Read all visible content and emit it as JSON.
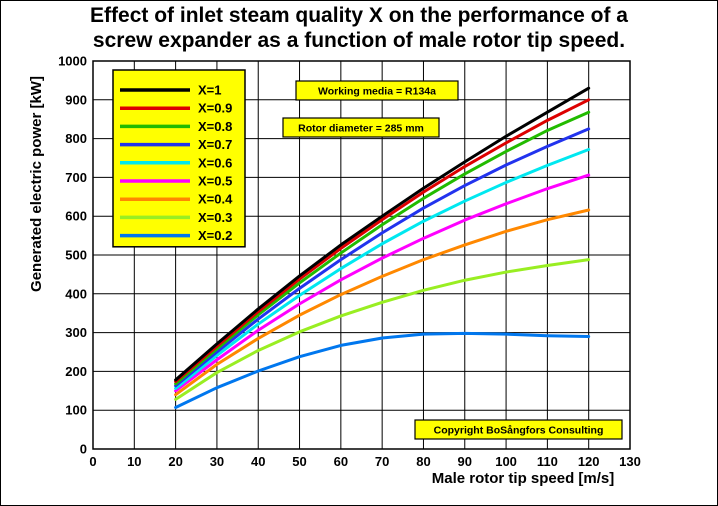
{
  "chart_data": {
    "type": "line",
    "title": "Effect of inlet steam quality X on the performance of a\nscrew expander as a function of male rotor tip speed.",
    "xlabel": "Male rotor tip speed [m/s]",
    "ylabel": "Generated electric power [kW]",
    "xlim": [
      0,
      130
    ],
    "ylim": [
      0,
      1000
    ],
    "xticks": [
      0,
      10,
      20,
      30,
      40,
      50,
      60,
      70,
      80,
      90,
      100,
      110,
      120,
      130
    ],
    "yticks": [
      0,
      100,
      200,
      300,
      400,
      500,
      600,
      700,
      800,
      900,
      1000
    ],
    "grid": true,
    "legend_position": "top-left",
    "x": [
      20,
      30,
      40,
      50,
      60,
      70,
      80,
      90,
      100,
      110,
      120
    ],
    "series": [
      {
        "name": "X=1",
        "color": "#000000",
        "values": [
          178,
          271,
          361,
          446,
          526,
          600,
          672,
          740,
          806,
          868,
          930
        ]
      },
      {
        "name": "X=0.9",
        "color": "#dd0000",
        "values": [
          174,
          265,
          354,
          438,
          517,
          591,
          662,
          728,
          789,
          847,
          900
        ]
      },
      {
        "name": "X=0.8",
        "color": "#22bb00",
        "values": [
          168,
          258,
          346,
          428,
          505,
          578,
          646,
          709,
          767,
          821,
          868
        ]
      },
      {
        "name": "X=0.7",
        "color": "#2233ee",
        "values": [
          163,
          250,
          335,
          414,
          488,
          557,
          621,
          679,
          732,
          780,
          825
        ]
      },
      {
        "name": "X=0.6",
        "color": "#00e8f0",
        "values": [
          156,
          241,
          322,
          396,
          465,
          529,
          587,
          639,
          687,
          731,
          772
        ]
      },
      {
        "name": "X=0.5",
        "color": "#ff00ff",
        "values": [
          150,
          230,
          306,
          374,
          436,
          492,
          543,
          590,
          632,
          671,
          706
        ]
      },
      {
        "name": "X=0.4",
        "color": "#ff8800",
        "values": [
          140,
          218,
          285,
          345,
          398,
          445,
          488,
          526,
          561,
          591,
          616
        ]
      },
      {
        "name": "X=0.3",
        "color": "#99ee22",
        "values": [
          128,
          197,
          254,
          302,
          343,
          378,
          409,
          435,
          456,
          473,
          488
        ]
      },
      {
        "name": "X=0.2",
        "color": "#0077ee",
        "values": [
          107,
          158,
          201,
          238,
          267,
          286,
          296,
          298,
          296,
          292,
          290
        ]
      }
    ],
    "annotations": [
      "Working media = R134a",
      "Rotor diameter = 285 mm",
      "Copyright BoSångfors Consulting"
    ]
  },
  "colors": {
    "legend_background": "#ffff00",
    "note_background": "#ffff00"
  }
}
